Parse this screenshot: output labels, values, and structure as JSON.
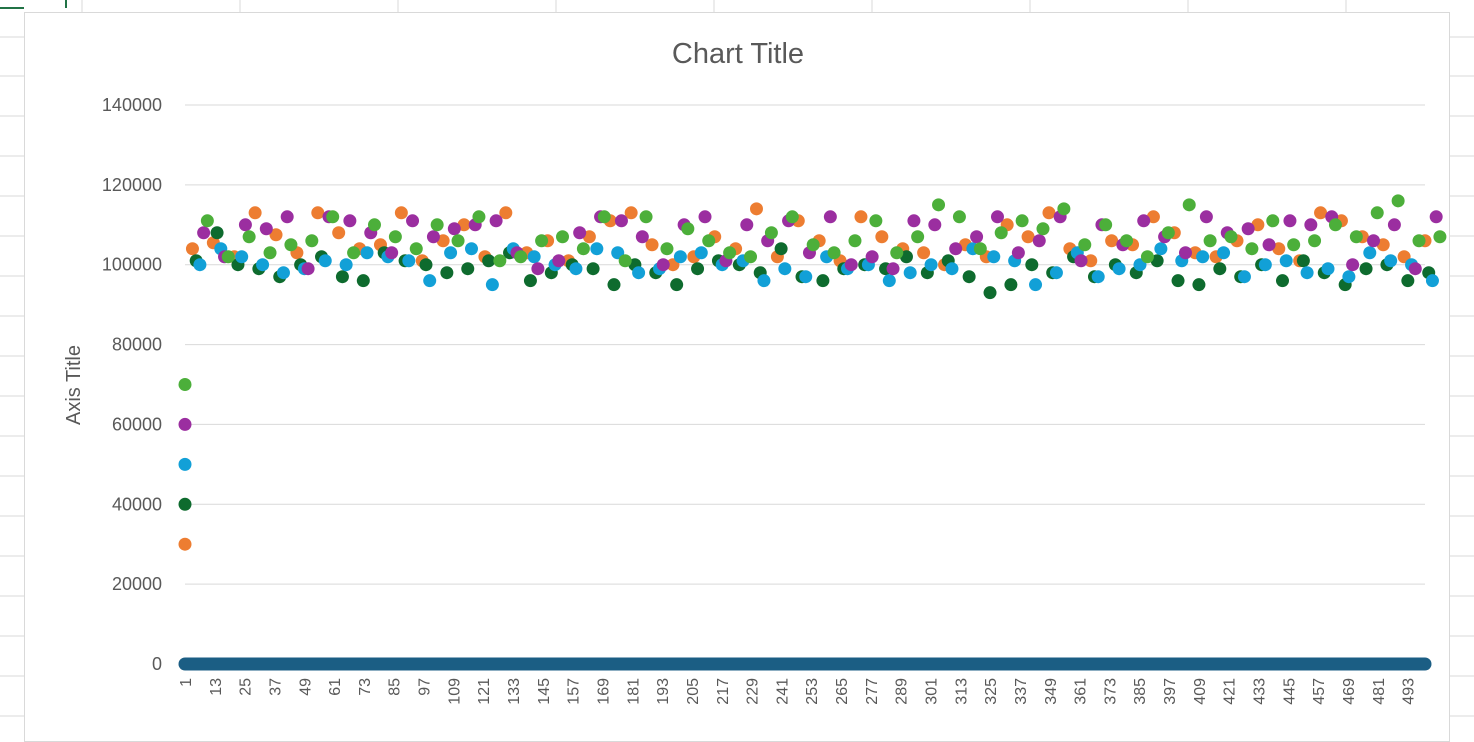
{
  "chart_data": {
    "type": "line",
    "title": "Chart Title",
    "xlabel": "",
    "ylabel": "Axis Title",
    "ylim": [
      0,
      140000
    ],
    "y_ticks": [
      "0",
      "20000",
      "40000",
      "60000",
      "80000",
      "100000",
      "120000",
      "140000"
    ],
    "x_ticks": [
      "1",
      "13",
      "25",
      "37",
      "49",
      "61",
      "73",
      "85",
      "97",
      "109",
      "121",
      "133",
      "145",
      "157",
      "169",
      "181",
      "193",
      "205",
      "217",
      "229",
      "241",
      "253",
      "265",
      "277",
      "289",
      "301",
      "313",
      "325",
      "337",
      "349",
      "361",
      "373",
      "385",
      "397",
      "409",
      "421",
      "433",
      "445",
      "457",
      "469",
      "481",
      "493"
    ],
    "x_range": [
      1,
      500
    ],
    "grid": true,
    "legend": "none",
    "markers": true,
    "colors": [
      "#ed7d31",
      "#0e6b2e",
      "#12a0d7",
      "#9b2ea0",
      "#4caf3a",
      "#1b5e84"
    ],
    "series": [
      {
        "color": "#ed7d31",
        "start_value": 30000,
        "values": [
          104000,
          105500,
          102000,
          113000,
          107500,
          103000,
          113000,
          108000,
          104000,
          105000,
          113000,
          101000,
          106000,
          110000,
          102000,
          113000,
          103000,
          106000,
          101000,
          107000,
          111000,
          113000,
          105000,
          100000,
          102000,
          107000,
          104000,
          114000,
          102000,
          111000,
          106000,
          101000,
          112000,
          107000,
          104000,
          103000,
          100000,
          105000,
          102000,
          110000,
          107000,
          113000,
          104000,
          101000,
          106000,
          105000,
          112000,
          108000,
          103000,
          102000,
          106000,
          110000,
          104000,
          101000,
          113000,
          111000,
          107000,
          105000,
          102000,
          106000
        ]
      },
      {
        "color": "#0e6b2e",
        "start_value": 40000,
        "values": [
          101000,
          108000,
          100000,
          99000,
          97000,
          100000,
          102000,
          97000,
          96000,
          103000,
          101000,
          100000,
          98000,
          99000,
          101000,
          103000,
          96000,
          98000,
          100000,
          99000,
          95000,
          100000,
          98000,
          95000,
          99000,
          101000,
          100000,
          98000,
          104000,
          97000,
          96000,
          99000,
          100000,
          99000,
          102000,
          98000,
          101000,
          97000,
          93000,
          95000,
          100000,
          98000,
          102000,
          97000,
          100000,
          98000,
          101000,
          96000,
          95000,
          99000,
          97000,
          100000,
          96000,
          101000,
          98000,
          95000,
          99000,
          100000,
          96000,
          98000
        ]
      },
      {
        "color": "#12a0d7",
        "start_value": 50000,
        "values": [
          100000,
          104000,
          102000,
          100000,
          98000,
          99000,
          101000,
          100000,
          103000,
          102000,
          101000,
          96000,
          103000,
          104000,
          95000,
          104000,
          102000,
          100000,
          99000,
          104000,
          103000,
          98000,
          99000,
          102000,
          103000,
          100000,
          101000,
          96000,
          99000,
          97000,
          102000,
          99000,
          100000,
          96000,
          98000,
          100000,
          99000,
          104000,
          102000,
          101000,
          95000,
          98000,
          103000,
          97000,
          99000,
          100000,
          104000,
          101000,
          102000,
          103000,
          97000,
          100000,
          101000,
          98000,
          99000,
          97000,
          103000,
          101000,
          100000,
          96000
        ]
      },
      {
        "color": "#9b2ea0",
        "start_value": 60000,
        "values": [
          108000,
          102000,
          110000,
          109000,
          112000,
          99000,
          112000,
          111000,
          108000,
          103000,
          111000,
          107000,
          109000,
          110000,
          111000,
          103000,
          99000,
          101000,
          108000,
          112000,
          111000,
          107000,
          100000,
          110000,
          112000,
          101000,
          110000,
          106000,
          111000,
          103000,
          112000,
          100000,
          102000,
          99000,
          111000,
          110000,
          104000,
          107000,
          112000,
          103000,
          106000,
          112000,
          101000,
          110000,
          105000,
          111000,
          107000,
          103000,
          112000,
          108000,
          109000,
          105000,
          111000,
          110000,
          112000,
          100000,
          106000,
          110000,
          99000,
          112000
        ]
      },
      {
        "color": "#4caf3a",
        "start_value": 70000,
        "values": [
          111000,
          102000,
          107000,
          103000,
          105000,
          106000,
          112000,
          103000,
          110000,
          107000,
          104000,
          110000,
          106000,
          112000,
          101000,
          102000,
          106000,
          107000,
          104000,
          112000,
          101000,
          112000,
          104000,
          109000,
          106000,
          103000,
          102000,
          108000,
          112000,
          105000,
          103000,
          106000,
          111000,
          103000,
          107000,
          115000,
          112000,
          104000,
          108000,
          111000,
          109000,
          114000,
          105000,
          110000,
          106000,
          102000,
          108000,
          115000,
          106000,
          107000,
          104000,
          111000,
          105000,
          106000,
          110000,
          107000,
          113000,
          116000,
          106000,
          107000
        ]
      },
      {
        "color": "#1b5e84",
        "start_value": 0,
        "constant": 0,
        "note_free": true
      }
    ]
  }
}
